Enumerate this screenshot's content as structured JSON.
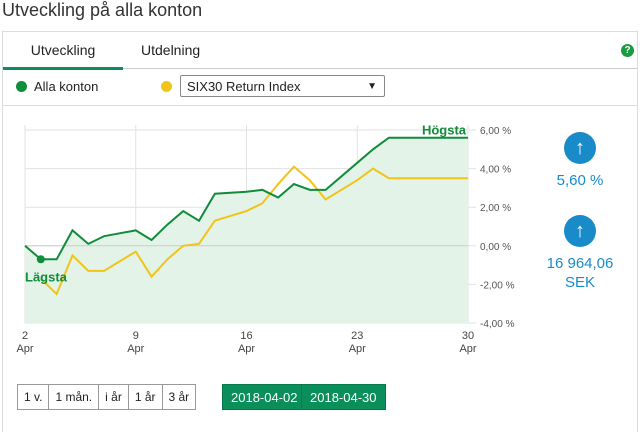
{
  "page_title": "Utveckling på alla konton",
  "tabs": [
    {
      "label": "Utveckling"
    },
    {
      "label": "Utdelning"
    }
  ],
  "help_icon": "?",
  "legend": {
    "series1": {
      "label": "Alla konton",
      "color": "#108c3a"
    },
    "series2_select": {
      "value": "SIX30 Return Index",
      "color": "#f0c419"
    }
  },
  "chart_data": {
    "type": "line",
    "x": [
      "2018-04-02",
      "2018-04-03",
      "2018-04-04",
      "2018-04-05",
      "2018-04-06",
      "2018-04-07",
      "2018-04-09",
      "2018-04-10",
      "2018-04-11",
      "2018-04-12",
      "2018-04-13",
      "2018-04-14",
      "2018-04-16",
      "2018-04-17",
      "2018-04-18",
      "2018-04-19",
      "2018-04-20",
      "2018-04-21",
      "2018-04-23",
      "2018-04-24",
      "2018-04-25",
      "2018-04-26",
      "2018-04-27",
      "2018-04-28",
      "2018-04-30"
    ],
    "series": [
      {
        "name": "Alla konton",
        "color": "#108c3a",
        "values": [
          0.0,
          -0.7,
          -0.7,
          0.8,
          0.1,
          0.5,
          0.8,
          0.3,
          1.1,
          1.8,
          1.3,
          2.7,
          2.8,
          2.9,
          2.5,
          3.2,
          2.9,
          2.9,
          4.3,
          5.0,
          5.6,
          5.6,
          5.6,
          5.6,
          5.6
        ]
      },
      {
        "name": "SIX30 Return Index",
        "color": "#f0c419",
        "values": [
          null,
          -1.7,
          -2.5,
          -0.5,
          -1.3,
          -1.3,
          -0.3,
          -1.6,
          -0.7,
          0.0,
          0.1,
          1.3,
          1.8,
          2.2,
          3.2,
          4.1,
          3.4,
          2.4,
          3.4,
          4.0,
          3.5,
          3.5,
          3.5,
          3.5,
          3.5
        ]
      }
    ],
    "ylim": [
      -4,
      6
    ],
    "yticks": [
      "6,00 %",
      "4,00 %",
      "2,00 %",
      "0,00 %",
      "-2,00 %",
      "-4,00 %"
    ],
    "xticks": [
      {
        "day": "2",
        "month": "Apr"
      },
      {
        "day": "9",
        "month": "Apr"
      },
      {
        "day": "16",
        "month": "Apr"
      },
      {
        "day": "23",
        "month": "Apr"
      },
      {
        "day": "30",
        "month": "Apr"
      }
    ],
    "annotations": {
      "high": "Högsta",
      "low": "Lägsta"
    },
    "grid": true
  },
  "stats": {
    "percent": "5,60 %",
    "amount": "16 964,06",
    "currency": "SEK"
  },
  "periods": [
    "1 v.",
    "1 mån.",
    "i år",
    "1 år",
    "3 år"
  ],
  "dates": {
    "from": "2018-04-02",
    "to": "2018-04-30"
  }
}
